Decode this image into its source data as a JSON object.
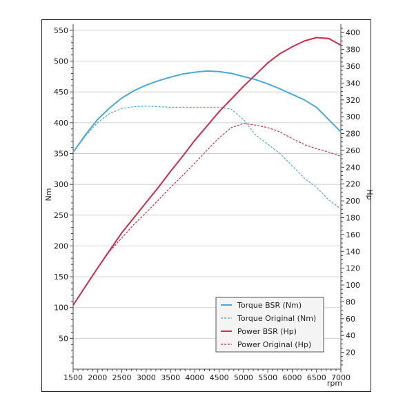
{
  "chart_data": {
    "type": "line",
    "xlabel": "rpm",
    "ylabel_left": "Nm",
    "ylabel_right": "Hp",
    "xlim": [
      1500,
      7000
    ],
    "ylim_left": [
      0,
      560
    ],
    "ylim_right": [
      0,
      410
    ],
    "x_ticks": [
      1500,
      2000,
      2500,
      3000,
      3500,
      4000,
      4500,
      5000,
      5500,
      6000,
      6500,
      7000
    ],
    "y_ticks_left": [
      50,
      100,
      150,
      200,
      250,
      300,
      350,
      400,
      450,
      500,
      550
    ],
    "y_ticks_right": [
      20,
      40,
      60,
      80,
      100,
      120,
      140,
      160,
      180,
      200,
      220,
      240,
      260,
      280,
      300,
      320,
      340,
      360,
      380,
      400
    ],
    "grid": "horizontal",
    "legend_position": "bottom-right",
    "series": [
      {
        "name": "Torque BSR (Nm)",
        "axis": "left",
        "color": "#4aa8dc",
        "dash": false,
        "x": [
          1500,
          1750,
          2000,
          2250,
          2500,
          2750,
          3000,
          3250,
          3500,
          3750,
          4000,
          4250,
          4500,
          4750,
          5000,
          5250,
          5500,
          5750,
          6000,
          6250,
          6500,
          6750,
          7000
        ],
        "values": [
          352,
          380,
          405,
          424,
          440,
          452,
          461,
          468,
          474,
          479,
          482,
          484,
          483,
          480,
          475,
          470,
          463,
          455,
          446,
          437,
          425,
          405,
          385
        ]
      },
      {
        "name": "Torque Original (Nm)",
        "axis": "left",
        "color": "#4aa8dc",
        "dash": true,
        "x": [
          1500,
          1750,
          2000,
          2250,
          2500,
          2750,
          3000,
          3250,
          3500,
          3750,
          4000,
          4250,
          4500,
          4750,
          5000,
          5250,
          5500,
          5750,
          6000,
          6250,
          6500,
          6750,
          7000
        ],
        "values": [
          352,
          378,
          400,
          415,
          423,
          426,
          427,
          426,
          425,
          425,
          425,
          425,
          425,
          422,
          405,
          380,
          365,
          350,
          330,
          310,
          295,
          275,
          260
        ]
      },
      {
        "name": "Power BSR (Hp)",
        "axis": "right",
        "color": "#d02a48",
        "dash": false,
        "x": [
          1500,
          1750,
          2000,
          2250,
          2500,
          2750,
          3000,
          3250,
          3500,
          3750,
          4000,
          4250,
          4500,
          4750,
          5000,
          5250,
          5500,
          5750,
          6000,
          6250,
          6500,
          6750,
          7000
        ],
        "values": [
          76,
          98,
          120,
          141,
          162,
          180,
          198,
          216,
          235,
          253,
          272,
          289,
          306,
          321,
          336,
          350,
          364,
          375,
          383,
          390,
          394,
          393,
          385
        ]
      },
      {
        "name": "Power Original (Hp)",
        "axis": "right",
        "color": "#d02a48",
        "dash": true,
        "x": [
          1500,
          1750,
          2000,
          2250,
          2500,
          2750,
          3000,
          3250,
          3500,
          3750,
          4000,
          4250,
          4500,
          4750,
          5000,
          5250,
          5500,
          5750,
          6000,
          6250,
          6500,
          6750,
          7000
        ],
        "values": [
          76,
          98,
          120,
          140,
          156,
          172,
          186,
          201,
          216,
          230,
          245,
          260,
          275,
          287,
          292,
          290,
          287,
          282,
          274,
          267,
          262,
          258,
          253
        ]
      }
    ]
  }
}
